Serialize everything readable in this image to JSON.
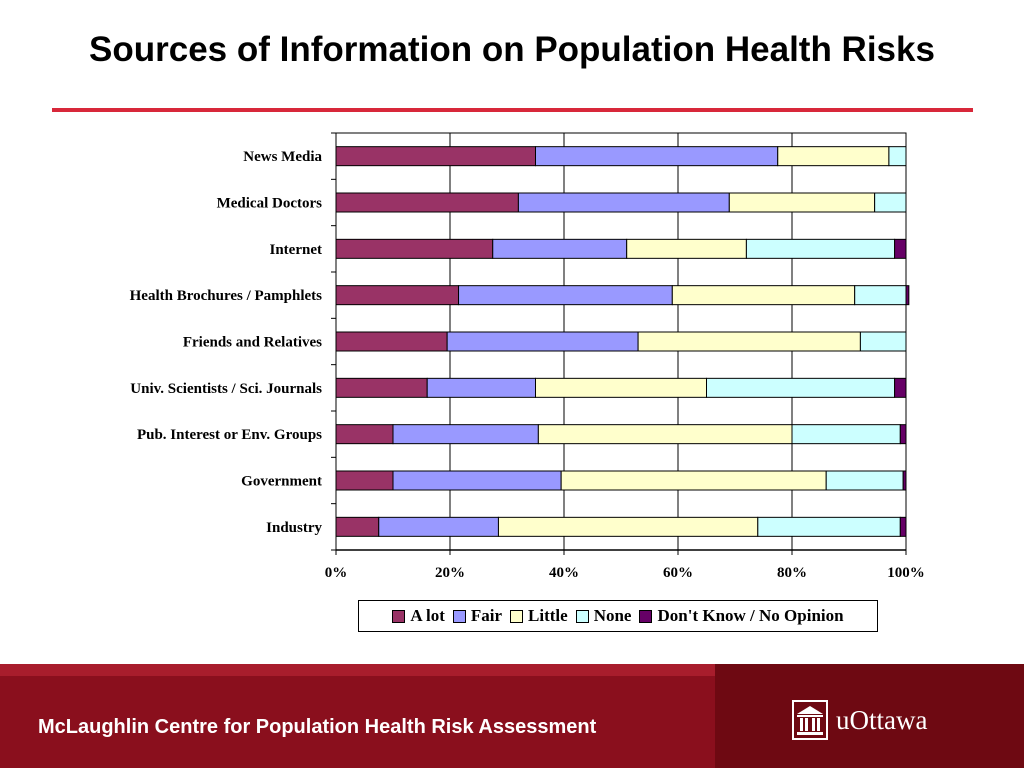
{
  "slide": {
    "title": "Sources of Information on Population Health Risks",
    "footer_text": "McLaughlin Centre for Population Health Risk Assessment",
    "logo_text": "uOttawa",
    "title_rule_color": "#d8283a",
    "footer_color": "#8a0f1d",
    "logo_icon": "university-building-icon"
  },
  "chart_data": {
    "type": "bar",
    "orientation": "horizontal",
    "stacked": "percent",
    "title": "",
    "xlabel": "",
    "ylabel": "",
    "xlim": [
      0,
      100
    ],
    "x_ticks": [
      "0%",
      "20%",
      "40%",
      "60%",
      "80%",
      "100%"
    ],
    "grid": true,
    "legend_position": "bottom",
    "categories": [
      "News Media",
      "Medical Doctors",
      "Internet",
      "Health Brochures / Pamphlets",
      "Friends and Relatives",
      "Univ. Scientists / Sci. Journals",
      "Pub. Interest or Env. Groups",
      "Government",
      "Industry"
    ],
    "series": [
      {
        "name": "A lot",
        "color": "#993366",
        "values": [
          35,
          32,
          27.5,
          21.5,
          19.5,
          16,
          10,
          10,
          7.5
        ]
      },
      {
        "name": "Fair",
        "color": "#9999ff",
        "values": [
          42.5,
          37,
          23.5,
          37.5,
          33.5,
          19,
          25.5,
          29.5,
          21
        ]
      },
      {
        "name": "Little",
        "color": "#ffffcc",
        "values": [
          19.5,
          25.5,
          21,
          32,
          39,
          30,
          44.5,
          46.5,
          45.5
        ]
      },
      {
        "name": "None",
        "color": "#ccffff",
        "values": [
          3,
          5.5,
          26,
          9,
          8,
          33,
          19,
          13.5,
          25
        ]
      },
      {
        "name": "Don't Know / No Opinion",
        "color": "#660066",
        "values": [
          0,
          0,
          2,
          0.5,
          0,
          2,
          1,
          0.5,
          1
        ]
      }
    ]
  }
}
